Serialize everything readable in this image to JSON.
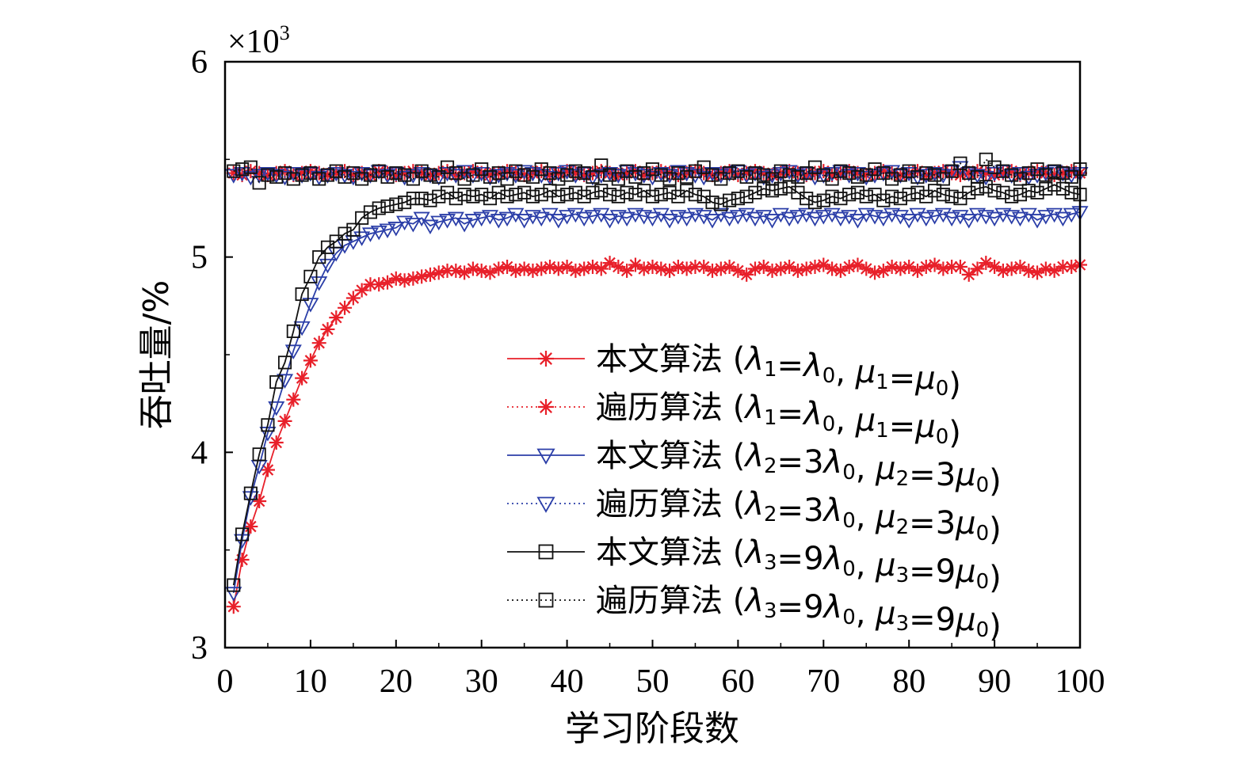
{
  "chart_data": {
    "type": "line",
    "xlabel": "学习阶段数",
    "ylabel": "吞吐量/%",
    "y_multiplier": "×10",
    "y_multiplier_exp": "3",
    "xlim": [
      0,
      100
    ],
    "ylim": [
      3,
      6
    ],
    "xticks": [
      "0",
      "10",
      "20",
      "30",
      "40",
      "50",
      "60",
      "70",
      "80",
      "90",
      "100"
    ],
    "yticks": [
      "3",
      "4",
      "5",
      "6"
    ],
    "grid": false,
    "legend_position": "bottom-right",
    "x": [
      1,
      2,
      3,
      4,
      5,
      6,
      7,
      8,
      9,
      10,
      11,
      12,
      13,
      14,
      15,
      16,
      17,
      18,
      19,
      20,
      21,
      22,
      23,
      24,
      25,
      26,
      27,
      28,
      29,
      30,
      31,
      32,
      33,
      34,
      35,
      36,
      37,
      38,
      39,
      40,
      41,
      42,
      43,
      44,
      45,
      46,
      47,
      48,
      49,
      50,
      51,
      52,
      53,
      54,
      55,
      56,
      57,
      58,
      59,
      60,
      61,
      62,
      63,
      64,
      65,
      66,
      67,
      68,
      69,
      70,
      71,
      72,
      73,
      74,
      75,
      76,
      77,
      78,
      79,
      80,
      81,
      82,
      83,
      84,
      85,
      86,
      87,
      88,
      89,
      90,
      91,
      92,
      93,
      94,
      95,
      96,
      97,
      98,
      99,
      100
    ],
    "series": [
      {
        "name": "本文算法 (λ1=λ0, μ1=μ0)",
        "legend_alg": "本文算法",
        "legend_params": "(λ1=λ0, μ1=μ0)",
        "color": "#e8202a",
        "marker": "asterisk",
        "dash": "solid",
        "values": [
          3.21,
          3.45,
          3.62,
          3.75,
          3.91,
          4.05,
          4.16,
          4.27,
          4.38,
          4.47,
          4.56,
          4.63,
          4.69,
          4.74,
          4.79,
          4.83,
          4.86,
          4.86,
          4.87,
          4.89,
          4.88,
          4.89,
          4.9,
          4.91,
          4.92,
          4.93,
          4.93,
          4.92,
          4.94,
          4.93,
          4.92,
          4.94,
          4.95,
          4.93,
          4.94,
          4.93,
          4.94,
          4.95,
          4.94,
          4.95,
          4.93,
          4.94,
          4.95,
          4.94,
          4.97,
          4.95,
          4.93,
          4.96,
          4.94,
          4.95,
          4.94,
          4.93,
          4.95,
          4.94,
          4.95,
          4.95,
          4.93,
          4.94,
          4.95,
          4.93,
          4.91,
          4.94,
          4.95,
          4.93,
          4.94,
          4.95,
          4.93,
          4.94,
          4.95,
          4.96,
          4.94,
          4.93,
          4.95,
          4.96,
          4.94,
          4.92,
          4.93,
          4.95,
          4.94,
          4.95,
          4.93,
          4.95,
          4.96,
          4.94,
          4.95,
          4.95,
          4.91,
          4.94,
          4.97,
          4.95,
          4.93,
          4.94,
          4.95,
          4.93,
          4.92,
          4.94,
          4.93,
          4.95,
          4.95,
          4.96
        ]
      },
      {
        "name": "遍历算法 (λ1=λ0, μ1=μ0)",
        "legend_alg": "遍历算法",
        "legend_params": "(λ1=λ0, μ1=μ0)",
        "color": "#e8202a",
        "marker": "asterisk",
        "dash": "dotted",
        "values": [
          5.43,
          5.42,
          5.44,
          5.43,
          5.42,
          5.43,
          5.44,
          5.42,
          5.43,
          5.44,
          5.43,
          5.42,
          5.43,
          5.44,
          5.42,
          5.43,
          5.42,
          5.44,
          5.43,
          5.42,
          5.43,
          5.44,
          5.43,
          5.42,
          5.43,
          5.44,
          5.42,
          5.43,
          5.44,
          5.43,
          5.42,
          5.43,
          5.44,
          5.43,
          5.42,
          5.43,
          5.44,
          5.42,
          5.43,
          5.44,
          5.43,
          5.42,
          5.43,
          5.44,
          5.43,
          5.42,
          5.43,
          5.44,
          5.42,
          5.43,
          5.44,
          5.43,
          5.42,
          5.43,
          5.44,
          5.43,
          5.42,
          5.43,
          5.44,
          5.42,
          5.43,
          5.44,
          5.43,
          5.42,
          5.43,
          5.44,
          5.43,
          5.42,
          5.43,
          5.44,
          5.42,
          5.43,
          5.44,
          5.43,
          5.42,
          5.43,
          5.44,
          5.43,
          5.42,
          5.43,
          5.44,
          5.42,
          5.43,
          5.44,
          5.43,
          5.42,
          5.43,
          5.44,
          5.43,
          5.42,
          5.43,
          5.44,
          5.42,
          5.43,
          5.44,
          5.43,
          5.42,
          5.43,
          5.44,
          5.43
        ]
      },
      {
        "name": "本文算法 (λ2=3λ0, μ2=3μ0)",
        "legend_alg": "本文算法",
        "legend_params": "(λ2=3λ0, μ2=3μ0)",
        "color": "#2b3ea8",
        "marker": "triangle-down",
        "dash": "solid",
        "values": [
          3.28,
          3.55,
          3.77,
          3.93,
          4.1,
          4.23,
          4.37,
          4.52,
          4.64,
          4.76,
          4.87,
          4.96,
          5.02,
          5.06,
          5.08,
          5.1,
          5.12,
          5.13,
          5.14,
          5.15,
          5.18,
          5.17,
          5.2,
          5.16,
          5.18,
          5.19,
          5.2,
          5.17,
          5.19,
          5.2,
          5.21,
          5.19,
          5.2,
          5.22,
          5.19,
          5.21,
          5.2,
          5.22,
          5.19,
          5.21,
          5.22,
          5.2,
          5.21,
          5.22,
          5.19,
          5.21,
          5.2,
          5.22,
          5.21,
          5.2,
          5.22,
          5.19,
          5.21,
          5.2,
          5.22,
          5.21,
          5.19,
          5.22,
          5.2,
          5.21,
          5.22,
          5.2,
          5.21,
          5.19,
          5.22,
          5.2,
          5.21,
          5.22,
          5.2,
          5.21,
          5.22,
          5.2,
          5.21,
          5.19,
          5.22,
          5.21,
          5.2,
          5.22,
          5.21,
          5.19,
          5.22,
          5.2,
          5.21,
          5.22,
          5.2,
          5.21,
          5.19,
          5.22,
          5.21,
          5.2,
          5.22,
          5.21,
          5.2,
          5.22,
          5.19,
          5.21,
          5.22,
          5.2,
          5.22,
          5.23
        ]
      },
      {
        "name": "遍历算法 (λ2=3λ0, μ2=3μ0)",
        "legend_alg": "遍历算法",
        "legend_params": "(λ2=3λ0, μ2=3μ0)",
        "color": "#2b3ea8",
        "marker": "triangle-down",
        "dash": "dotted",
        "values": [
          5.42,
          5.43,
          5.41,
          5.42,
          5.43,
          5.42,
          5.41,
          5.43,
          5.42,
          5.43,
          5.41,
          5.42,
          5.43,
          5.42,
          5.41,
          5.43,
          5.42,
          5.44,
          5.42,
          5.43,
          5.41,
          5.42,
          5.43,
          5.42,
          5.41,
          5.43,
          5.42,
          5.44,
          5.42,
          5.43,
          5.41,
          5.42,
          5.43,
          5.42,
          5.44,
          5.43,
          5.42,
          5.41,
          5.43,
          5.44,
          5.42,
          5.43,
          5.41,
          5.42,
          5.43,
          5.42,
          5.44,
          5.43,
          5.42,
          5.41,
          5.43,
          5.42,
          5.44,
          5.43,
          5.42,
          5.41,
          5.43,
          5.42,
          5.43,
          5.44,
          5.42,
          5.43,
          5.41,
          5.42,
          5.43,
          5.44,
          5.42,
          5.43,
          5.41,
          5.42,
          5.43,
          5.44,
          5.42,
          5.43,
          5.41,
          5.42,
          5.43,
          5.44,
          5.42,
          5.43,
          5.41,
          5.42,
          5.43,
          5.42,
          5.44,
          5.46,
          5.43,
          5.42,
          5.41,
          5.43,
          5.44,
          5.42,
          5.43,
          5.41,
          5.42,
          5.43,
          5.44,
          5.43,
          5.42,
          5.43
        ]
      },
      {
        "name": "本文算法 (λ3=9λ0, μ3=9μ0)",
        "legend_alg": "本文算法",
        "legend_params": "(λ3=9λ0, μ3=9μ0)",
        "color": "#111111",
        "marker": "square",
        "dash": "solid",
        "values": [
          3.32,
          3.58,
          3.79,
          3.99,
          4.14,
          4.36,
          4.46,
          4.62,
          4.81,
          4.9,
          5.0,
          5.05,
          5.08,
          5.12,
          5.14,
          5.2,
          5.23,
          5.25,
          5.26,
          5.27,
          5.28,
          5.3,
          5.3,
          5.29,
          5.31,
          5.33,
          5.3,
          5.32,
          5.31,
          5.32,
          5.3,
          5.33,
          5.31,
          5.32,
          5.33,
          5.31,
          5.32,
          5.34,
          5.31,
          5.32,
          5.33,
          5.31,
          5.33,
          5.34,
          5.32,
          5.31,
          5.33,
          5.32,
          5.34,
          5.31,
          5.32,
          5.33,
          5.31,
          5.34,
          5.32,
          5.31,
          5.28,
          5.27,
          5.29,
          5.3,
          5.31,
          5.33,
          5.35,
          5.34,
          5.35,
          5.36,
          5.33,
          5.3,
          5.28,
          5.29,
          5.31,
          5.3,
          5.32,
          5.33,
          5.31,
          5.32,
          5.29,
          5.31,
          5.3,
          5.32,
          5.33,
          5.31,
          5.34,
          5.32,
          5.31,
          5.3,
          5.33,
          5.35,
          5.36,
          5.34,
          5.33,
          5.31,
          5.32,
          5.34,
          5.33,
          5.35,
          5.37,
          5.35,
          5.33,
          5.32
        ]
      },
      {
        "name": "遍历算法 (λ3=9λ0, μ3=9μ0)",
        "legend_alg": "遍历算法",
        "legend_params": "(λ3=9λ0, μ3=9μ0)",
        "color": "#111111",
        "marker": "square",
        "dash": "dotted",
        "values": [
          5.44,
          5.45,
          5.46,
          5.38,
          5.42,
          5.41,
          5.43,
          5.4,
          5.42,
          5.43,
          5.4,
          5.42,
          5.44,
          5.41,
          5.43,
          5.4,
          5.42,
          5.44,
          5.41,
          5.43,
          5.42,
          5.4,
          5.44,
          5.42,
          5.41,
          5.46,
          5.43,
          5.4,
          5.42,
          5.45,
          5.41,
          5.43,
          5.4,
          5.44,
          5.42,
          5.41,
          5.45,
          5.43,
          5.4,
          5.42,
          5.44,
          5.43,
          5.41,
          5.47,
          5.42,
          5.4,
          5.44,
          5.41,
          5.43,
          5.45,
          5.42,
          5.4,
          5.43,
          5.41,
          5.44,
          5.46,
          5.42,
          5.4,
          5.43,
          5.44,
          5.41,
          5.43,
          5.42,
          5.4,
          5.44,
          5.42,
          5.41,
          5.43,
          5.46,
          5.42,
          5.4,
          5.44,
          5.43,
          5.41,
          5.42,
          5.45,
          5.43,
          5.4,
          5.42,
          5.44,
          5.41,
          5.43,
          5.42,
          5.4,
          5.44,
          5.48,
          5.43,
          5.41,
          5.5,
          5.46,
          5.44,
          5.42,
          5.4,
          5.43,
          5.45,
          5.42,
          5.44,
          5.43,
          5.41,
          5.45
        ]
      }
    ]
  }
}
